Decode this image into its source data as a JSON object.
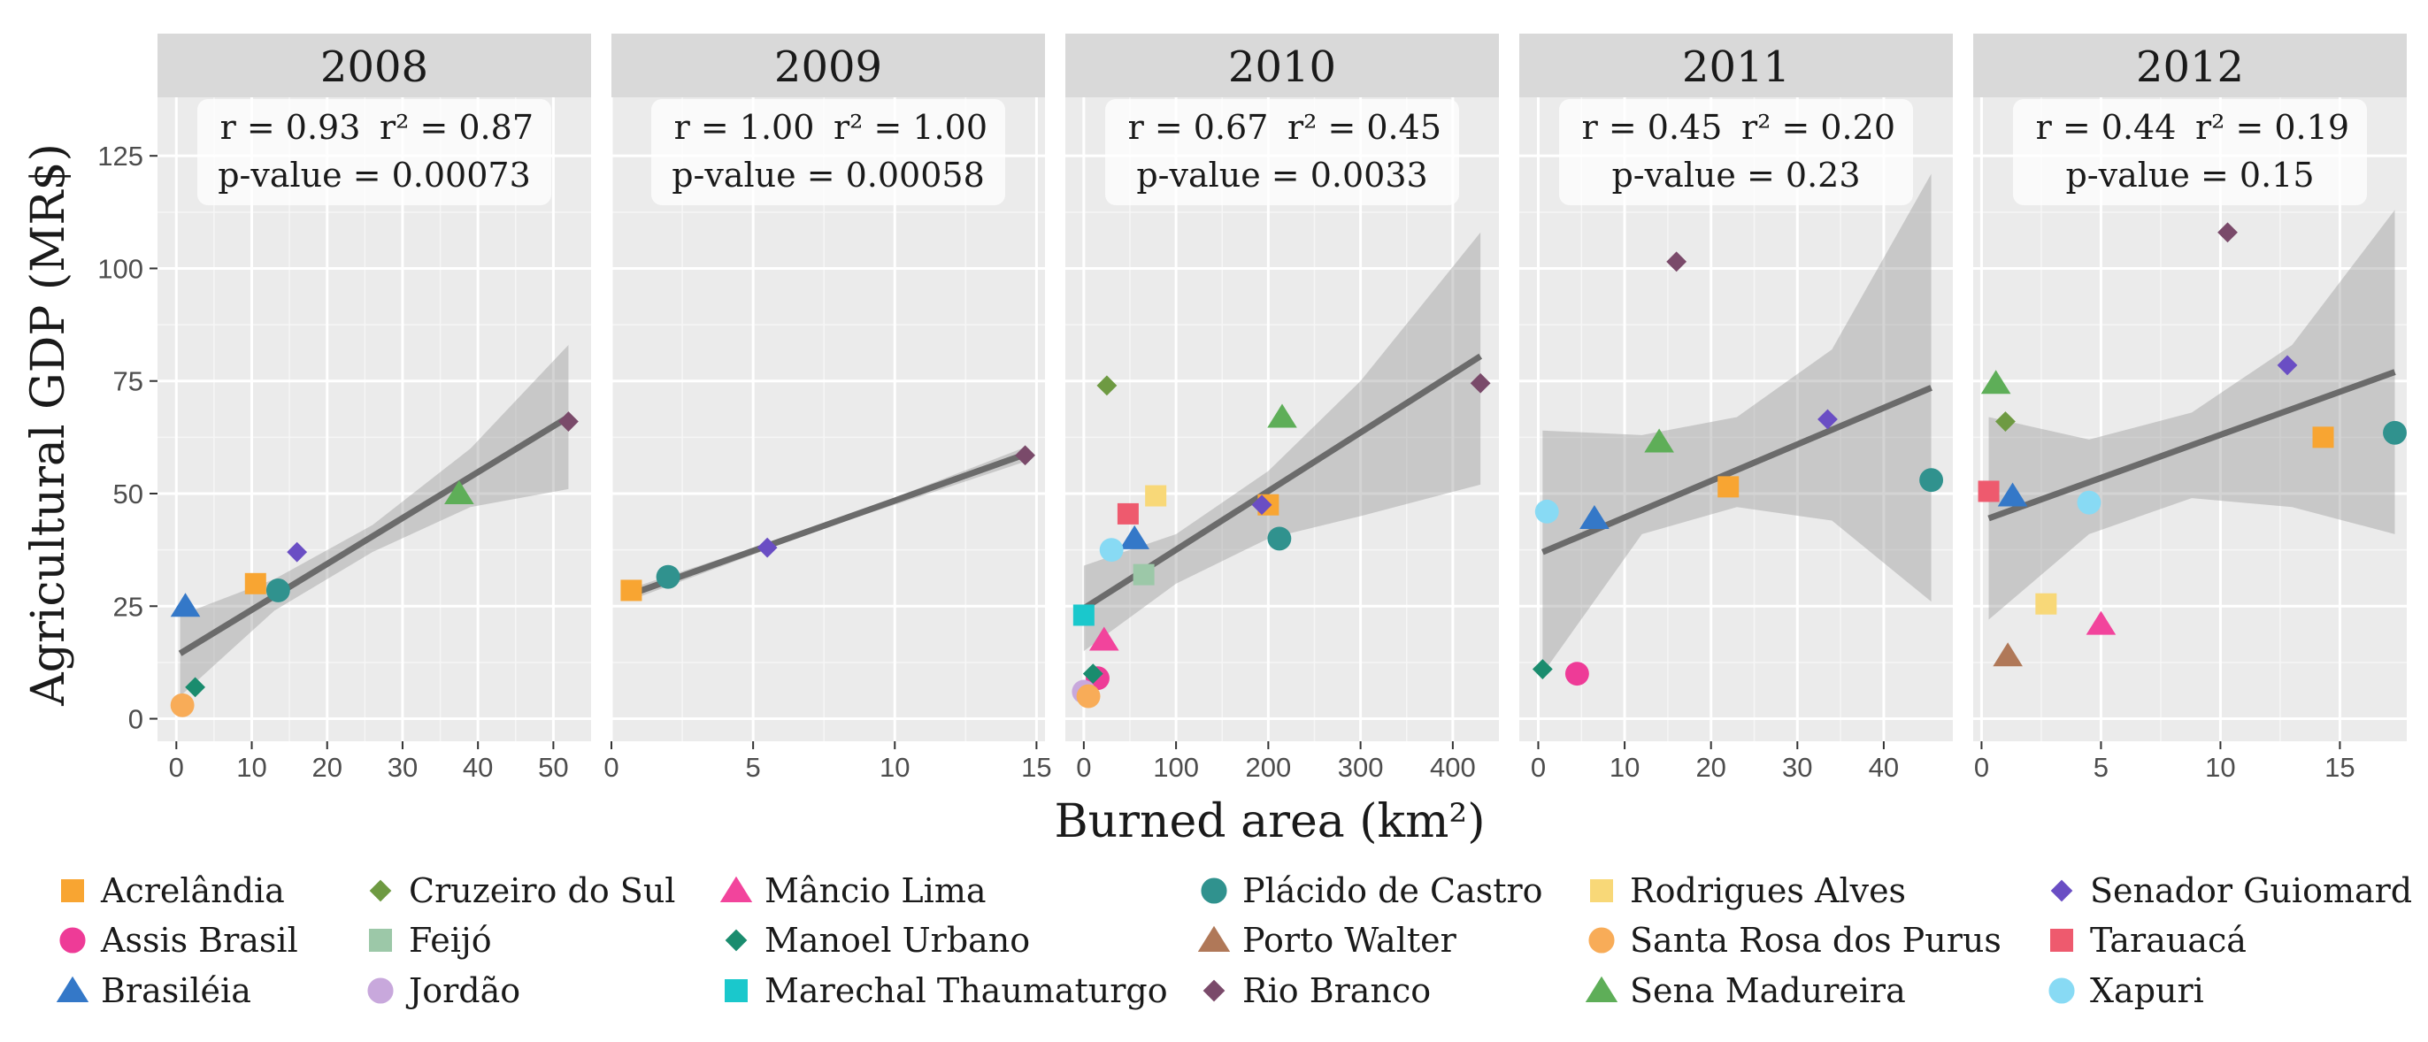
{
  "chart_data": {
    "type": "scatter",
    "ylabel": "Agricultural GDP (MR$)",
    "xlabel": "Burned area (km²)",
    "ylim": [
      -5,
      138
    ],
    "y_ticks": [
      0,
      25,
      50,
      75,
      100,
      125
    ],
    "grid": true,
    "legend_position": "bottom",
    "municipalities": [
      {
        "name": "Acrelândia",
        "shape": "square",
        "color": "#F8A532"
      },
      {
        "name": "Assis Brasil",
        "shape": "circle",
        "color": "#EE3B97"
      },
      {
        "name": "Brasiléia",
        "shape": "triangle",
        "color": "#3478C8"
      },
      {
        "name": "Cruzeiro do Sul",
        "shape": "diamond",
        "color": "#6E9A42"
      },
      {
        "name": "Feijó",
        "shape": "square",
        "color": "#9CC8A8"
      },
      {
        "name": "Jordão",
        "shape": "circle",
        "color": "#C8A8DC"
      },
      {
        "name": "Mâncio Lima",
        "shape": "triangle",
        "color": "#F2449C"
      },
      {
        "name": "Manoel Urbano",
        "shape": "diamond",
        "color": "#1A8C6E"
      },
      {
        "name": "Marechal Thaumaturgo",
        "shape": "square",
        "color": "#1AC8CC"
      },
      {
        "name": "Plácido de Castro",
        "shape": "circle",
        "color": "#30928E"
      },
      {
        "name": "Porto Walter",
        "shape": "triangle",
        "color": "#B07858"
      },
      {
        "name": "Rio Branco",
        "shape": "diamond",
        "color": "#7A4A6A"
      },
      {
        "name": "Rodrigues Alves",
        "shape": "square",
        "color": "#F8D878"
      },
      {
        "name": "Santa Rosa dos Purus",
        "shape": "circle",
        "color": "#F8AC58"
      },
      {
        "name": "Sena Madureira",
        "shape": "triangle",
        "color": "#5EAE58"
      },
      {
        "name": "Senador Guiomard",
        "shape": "diamond",
        "color": "#6A4EC4"
      },
      {
        "name": "Tarauacá",
        "shape": "square",
        "color": "#EE5A6E"
      },
      {
        "name": "Xapuri",
        "shape": "circle",
        "color": "#88DAF4"
      }
    ],
    "panels": [
      {
        "year": "2008",
        "r_text": "r = 0.93",
        "r2_text": "r² = 0.87",
        "p_text": "p-value = 0.00073",
        "xlim": [
          -2.5,
          55
        ],
        "x_ticks": [
          0,
          10,
          20,
          30,
          40,
          50
        ],
        "fit": {
          "x": [
            0.5,
            52
          ],
          "y": [
            14.5,
            67
          ]
        },
        "band": {
          "x": [
            0.5,
            13,
            26,
            39,
            52
          ],
          "upper": [
            23,
            31,
            43,
            60,
            83
          ],
          "lower": [
            5,
            24,
            37,
            47,
            51
          ]
        },
        "points": [
          {
            "m": "Acrelândia",
            "x": 10.5,
            "y": 30
          },
          {
            "m": "Brasiléia",
            "x": 1.2,
            "y": 25
          },
          {
            "m": "Manoel Urbano",
            "x": 2.5,
            "y": 7
          },
          {
            "m": "Santa Rosa dos Purus",
            "x": 0.8,
            "y": 3
          },
          {
            "m": "Plácido de Castro",
            "x": 13.5,
            "y": 28.5
          },
          {
            "m": "Senador Guiomard",
            "x": 16,
            "y": 37
          },
          {
            "m": "Sena Madureira",
            "x": 37.5,
            "y": 50
          },
          {
            "m": "Rio Branco",
            "x": 52,
            "y": 66
          }
        ]
      },
      {
        "year": "2009",
        "r_text": "r = 1.00",
        "r2_text": "r² = 1.00",
        "p_text": "p-value = 0.00058",
        "xlim": [
          0,
          15.3
        ],
        "x_ticks": [
          0,
          5,
          10,
          15
        ],
        "fit": {
          "x": [
            0.7,
            14.6
          ],
          "y": [
            27.7,
            58.7
          ]
        },
        "band": {
          "x": [
            0.7,
            7.6,
            14.6
          ],
          "upper": [
            29,
            43.3,
            60.3
          ],
          "lower": [
            26.4,
            42.5,
            57.1
          ]
        },
        "points": [
          {
            "m": "Acrelândia",
            "x": 0.7,
            "y": 28.5
          },
          {
            "m": "Plácido de Castro",
            "x": 2.0,
            "y": 31.5
          },
          {
            "m": "Senador Guiomard",
            "x": 5.5,
            "y": 38
          },
          {
            "m": "Rio Branco",
            "x": 14.6,
            "y": 58.5
          }
        ]
      },
      {
        "year": "2010",
        "r_text": "r = 0.67",
        "r2_text": "r² = 0.45",
        "p_text": "p-value = 0.0033",
        "xlim": [
          -20,
          450
        ],
        "x_ticks": [
          0,
          100,
          200,
          300,
          400
        ],
        "fit": {
          "x": [
            0,
            430
          ],
          "y": [
            24.5,
            80.5
          ]
        },
        "band": {
          "x": [
            0,
            100,
            200,
            300,
            430
          ],
          "upper": [
            34,
            41,
            55,
            75,
            108
          ],
          "lower": [
            15,
            30,
            40,
            45,
            52
          ]
        },
        "points": [
          {
            "m": "Acrelândia",
            "x": 200,
            "y": 47.5
          },
          {
            "m": "Assis Brasil",
            "x": 15,
            "y": 9
          },
          {
            "m": "Brasiléia",
            "x": 55,
            "y": 40
          },
          {
            "m": "Cruzeiro do Sul",
            "x": 25,
            "y": 74
          },
          {
            "m": "Feijó",
            "x": 65,
            "y": 32
          },
          {
            "m": "Jordão",
            "x": 0,
            "y": 6
          },
          {
            "m": "Mâncio Lima",
            "x": 22,
            "y": 17.5
          },
          {
            "m": "Manoel Urbano",
            "x": 10,
            "y": 10
          },
          {
            "m": "Marechal Thaumaturgo",
            "x": 0,
            "y": 23
          },
          {
            "m": "Plácido de Castro",
            "x": 212,
            "y": 40
          },
          {
            "m": "Rio Branco",
            "x": 430,
            "y": 74.5
          },
          {
            "m": "Rodrigues Alves",
            "x": 78,
            "y": 49.5
          },
          {
            "m": "Santa Rosa dos Purus",
            "x": 5,
            "y": 5
          },
          {
            "m": "Sena Madureira",
            "x": 215,
            "y": 67
          },
          {
            "m": "Senador Guiomard",
            "x": 193,
            "y": 47.5
          },
          {
            "m": "Tarauacá",
            "x": 48,
            "y": 45.5
          },
          {
            "m": "Xapuri",
            "x": 30,
            "y": 37.5
          }
        ]
      },
      {
        "year": "2011",
        "r_text": "r = 0.45",
        "r2_text": "r² = 0.20",
        "p_text": "p-value = 0.23",
        "xlim": [
          -2.2,
          48
        ],
        "x_ticks": [
          0,
          10,
          20,
          30,
          40
        ],
        "fit": {
          "x": [
            0.5,
            45.5
          ],
          "y": [
            37,
            73.5
          ]
        },
        "band": {
          "x": [
            0.5,
            12,
            23,
            34,
            45.5
          ],
          "upper": [
            64,
            63,
            67,
            82,
            121
          ],
          "lower": [
            10,
            41,
            47,
            44,
            26
          ]
        },
        "points": [
          {
            "m": "Assis Brasil",
            "x": 4.5,
            "y": 10
          },
          {
            "m": "Manoel Urbano",
            "x": 0.5,
            "y": 11
          },
          {
            "m": "Xapuri",
            "x": 1,
            "y": 46
          },
          {
            "m": "Brasiléia",
            "x": 6.5,
            "y": 44.5
          },
          {
            "m": "Sena Madureira",
            "x": 14,
            "y": 61.5
          },
          {
            "m": "Rio Branco",
            "x": 16,
            "y": 101.5
          },
          {
            "m": "Acrelândia",
            "x": 22,
            "y": 51.5
          },
          {
            "m": "Senador Guiomard",
            "x": 33.5,
            "y": 66.5
          },
          {
            "m": "Plácido de Castro",
            "x": 45.5,
            "y": 53
          }
        ]
      },
      {
        "year": "2012",
        "r_text": "r = 0.44",
        "r2_text": "r² = 0.19",
        "p_text": "p-value = 0.15",
        "xlim": [
          -0.35,
          17.8
        ],
        "x_ticks": [
          0,
          5,
          10,
          15
        ],
        "fit": {
          "x": [
            0.3,
            17.3
          ],
          "y": [
            44.5,
            77
          ]
        },
        "band": {
          "x": [
            0.3,
            4.5,
            8.8,
            13,
            17.3
          ],
          "upper": [
            67,
            62,
            68,
            83,
            113
          ],
          "lower": [
            22,
            41,
            49,
            47,
            41
          ]
        },
        "points": [
          {
            "m": "Tarauacá",
            "x": 0.3,
            "y": 50.5
          },
          {
            "m": "Sena Madureira",
            "x": 0.6,
            "y": 74.5
          },
          {
            "m": "Cruzeiro do Sul",
            "x": 1.0,
            "y": 66
          },
          {
            "m": "Porto Walter",
            "x": 1.1,
            "y": 14
          },
          {
            "m": "Brasiléia",
            "x": 1.3,
            "y": 49.5
          },
          {
            "m": "Rodrigues Alves",
            "x": 2.7,
            "y": 25.5
          },
          {
            "m": "Xapuri",
            "x": 4.5,
            "y": 48
          },
          {
            "m": "Mâncio Lima",
            "x": 5.0,
            "y": 21
          },
          {
            "m": "Rio Branco",
            "x": 10.3,
            "y": 108
          },
          {
            "m": "Senador Guiomard",
            "x": 12.8,
            "y": 78.5
          },
          {
            "m": "Acrelândia",
            "x": 14.3,
            "y": 62.5
          },
          {
            "m": "Plácido de Castro",
            "x": 17.3,
            "y": 63.5
          }
        ]
      }
    ]
  }
}
